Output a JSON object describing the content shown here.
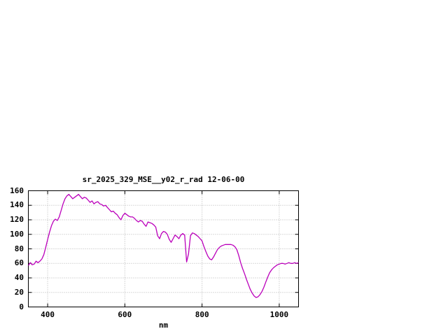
{
  "chart_data": {
    "type": "line",
    "title": "sr_2025_329_MSE__y02_r_rad 12-06-00",
    "xlabel": "nm",
    "ylabel": "",
    "xlim": [
      350,
      1050
    ],
    "ylim": [
      0,
      160
    ],
    "x_ticks": [
      400,
      600,
      800,
      1000
    ],
    "y_ticks": [
      0,
      20,
      40,
      60,
      80,
      100,
      120,
      140,
      160
    ],
    "grid": true,
    "legend": "none",
    "line_color": "#bb00bb",
    "series": [
      {
        "name": "sr_2025_329_MSE__y02_r_rad",
        "x_start": 350,
        "x_step": 5,
        "values": [
          57,
          61,
          58,
          59,
          63,
          61,
          63,
          66,
          72,
          82,
          93,
          103,
          112,
          118,
          121,
          119,
          124,
          133,
          142,
          149,
          153,
          155,
          152,
          149,
          151,
          153,
          155,
          152,
          149,
          151,
          150,
          147,
          144,
          146,
          142,
          144,
          145,
          142,
          141,
          139,
          140,
          137,
          134,
          131,
          132,
          129,
          127,
          123,
          120,
          126,
          129,
          127,
          125,
          124,
          124,
          122,
          119,
          117,
          119,
          118,
          114,
          111,
          117,
          116,
          115,
          113,
          110,
          98,
          94,
          101,
          104,
          103,
          100,
          93,
          89,
          94,
          99,
          97,
          94,
          99,
          101,
          99,
          62,
          73,
          98,
          102,
          101,
          99,
          97,
          94,
          91,
          83,
          76,
          70,
          66,
          65,
          69,
          74,
          79,
          82,
          84,
          85,
          86,
          86,
          86,
          86,
          85,
          83,
          79,
          71,
          61,
          53,
          46,
          38,
          31,
          24,
          19,
          15,
          13,
          14,
          17,
          21,
          27,
          34,
          41,
          47,
          51,
          54,
          56,
          58,
          59,
          60,
          60,
          59,
          60,
          61,
          60,
          60,
          61,
          60,
          61
        ]
      }
    ]
  },
  "colors": {
    "background": "#ffffff",
    "axis": "#000000",
    "grid": "#b4b4b4",
    "text": "#000000"
  }
}
